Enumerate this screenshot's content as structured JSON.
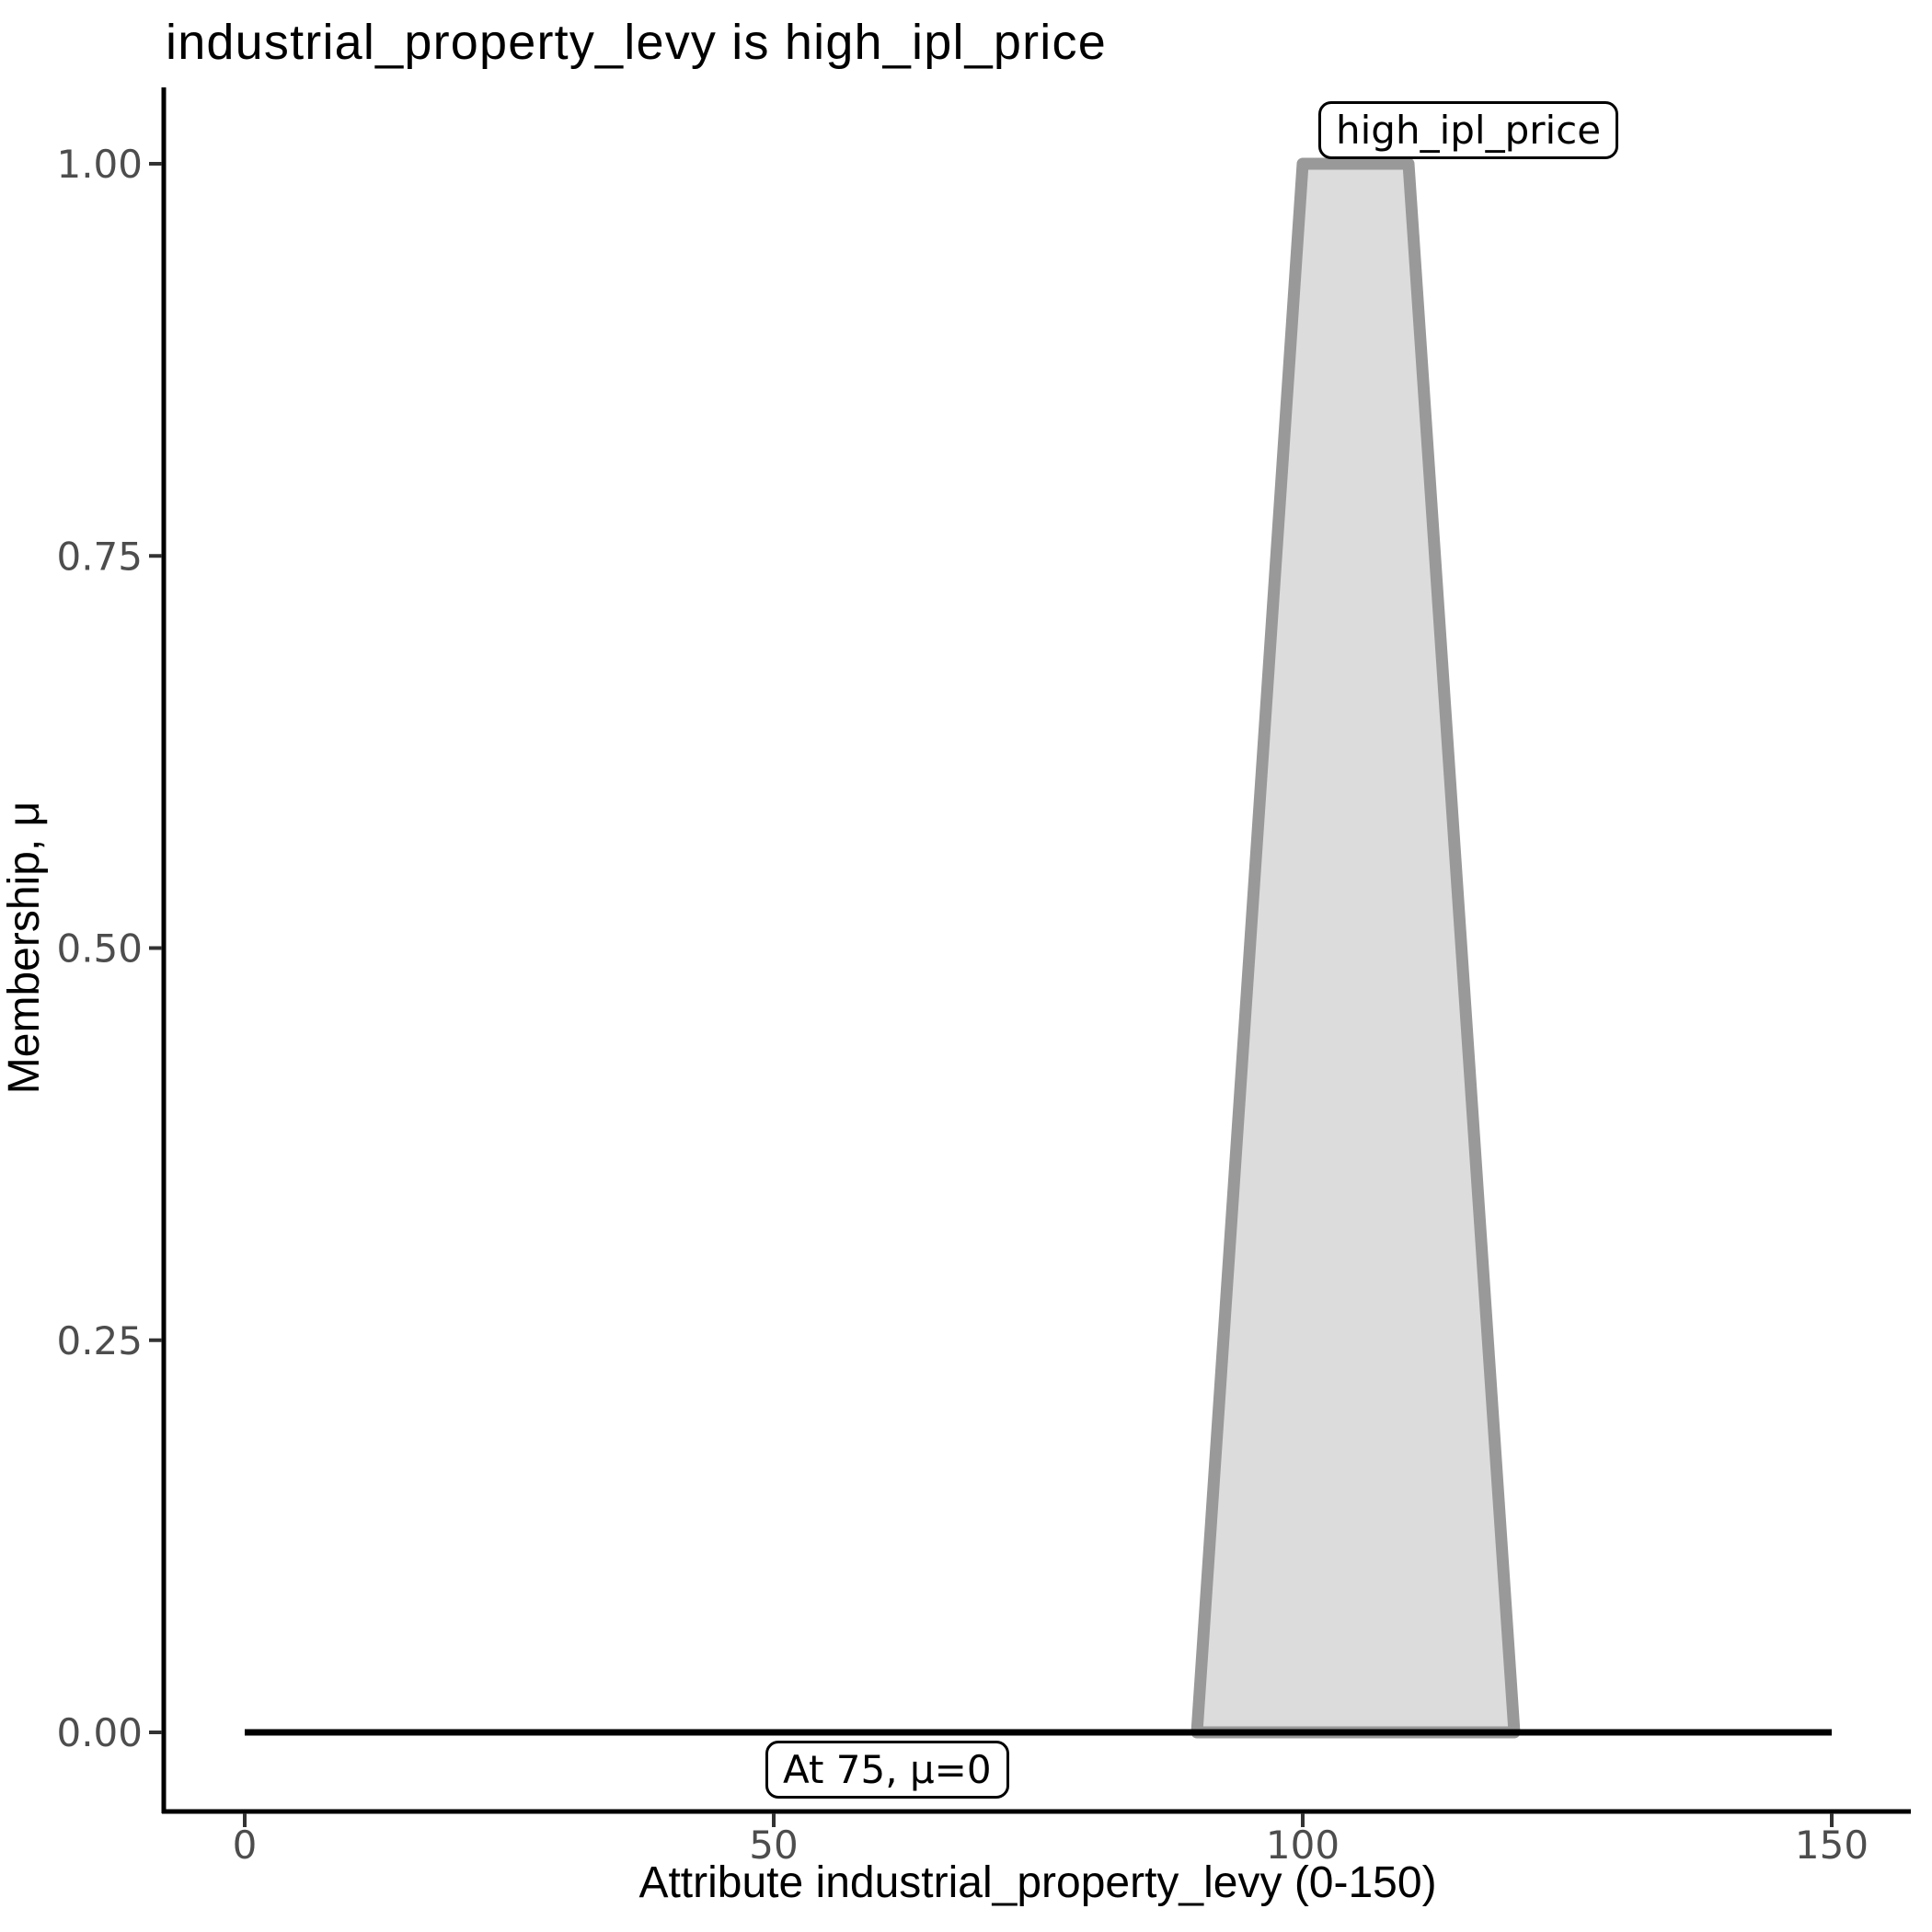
{
  "title": "industrial_property_levy is high_ipl_price",
  "x_axis": {
    "label": "Attribute industrial_property_levy (0-150)"
  },
  "y_axis": {
    "label": "Membership, μ"
  },
  "chart_data": {
    "type": "area",
    "title": "industrial_property_levy is high_ipl_price",
    "xlabel": "Attribute industrial_property_levy (0-150)",
    "ylabel": "Membership, μ",
    "xlim": [
      -7.5,
      157.5
    ],
    "ylim": [
      -0.05,
      1.05
    ],
    "grid": false,
    "legend": "none",
    "x_ticks": [
      {
        "value": 0,
        "label": "0"
      },
      {
        "value": 50,
        "label": "50"
      },
      {
        "value": 100,
        "label": "100"
      },
      {
        "value": 150,
        "label": "150"
      }
    ],
    "y_ticks": [
      {
        "value": 0.0,
        "label": "0.00"
      },
      {
        "value": 0.25,
        "label": "0.25"
      },
      {
        "value": 0.5,
        "label": "0.50"
      },
      {
        "value": 0.75,
        "label": "0.75"
      },
      {
        "value": 1.0,
        "label": "1.00"
      }
    ],
    "series": [
      {
        "name": "high_ipl_price",
        "kind": "filled-trapezoid",
        "points": [
          [
            90,
            0
          ],
          [
            100,
            1
          ],
          [
            110,
            1
          ],
          [
            120,
            0
          ]
        ],
        "fill": "#dcdcdc",
        "stroke": "#999999",
        "stroke_width": 13
      },
      {
        "name": "membership-evaluation-line",
        "kind": "line",
        "points": [
          [
            0,
            0
          ],
          [
            150,
            0
          ]
        ],
        "stroke": "#000000",
        "stroke_width": 7
      }
    ],
    "annotations": [
      {
        "text": "high_ipl_price",
        "x": 105,
        "y": 1.03
      },
      {
        "text": "At 75, μ=0",
        "x": 75,
        "y": -0.03
      }
    ],
    "colors": {
      "title": "#000000",
      "axis_line": "#000000",
      "tick_mark": "#333333",
      "tick_label": "#4d4d4d",
      "background": "#ffffff"
    }
  }
}
